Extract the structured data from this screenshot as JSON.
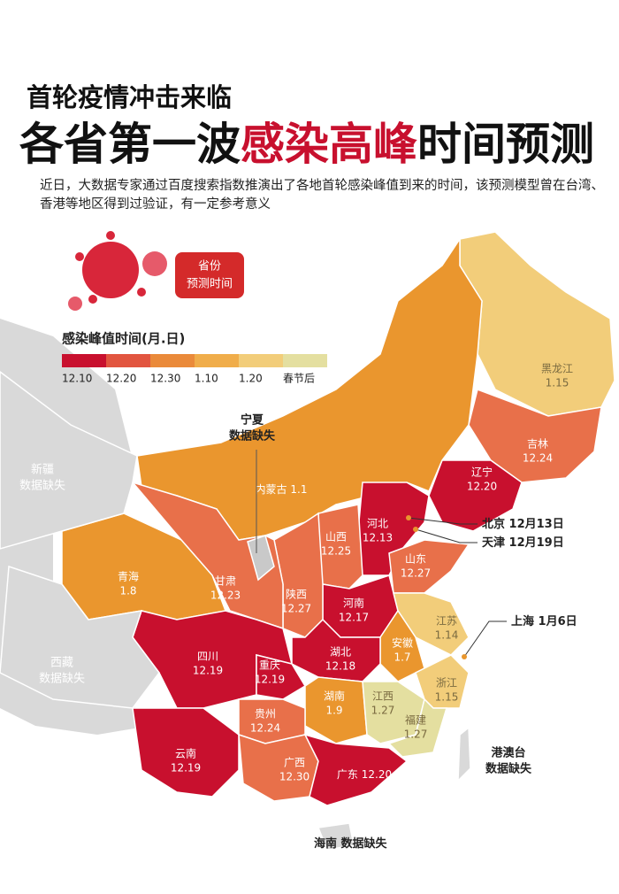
{
  "header": {
    "kicker": "首轮疫情冲击来临",
    "title_prefix": "各省第一波",
    "title_highlight": "感染高峰",
    "title_suffix": "时间预测",
    "description": "近日，大数据专家通过百度搜索指数推演出了各地首轮感染峰值到来的时间，该预测模型曾在台湾、香港等地区得到过验证，有一定参考意义"
  },
  "badge": [
    "省份",
    "预测时间"
  ],
  "legend": {
    "title": "感染峰值时间(月.日)",
    "items": [
      {
        "label": "12.10",
        "color": "#c8102e"
      },
      {
        "label": "12.20",
        "color": "#e2553f"
      },
      {
        "label": "12.30",
        "color": "#ea8a3a"
      },
      {
        "label": "1.10",
        "color": "#f0ad4a"
      },
      {
        "label": "1.20",
        "color": "#f2cd7a"
      },
      {
        "label": "春节后",
        "color": "#e4dfa0"
      }
    ]
  },
  "regions": [
    {
      "name": "黑龙江",
      "date": "1.15",
      "color": "#f2cd7a"
    },
    {
      "name": "吉林",
      "date": "12.24",
      "color": "#e8704a"
    },
    {
      "name": "辽宁",
      "date": "12.20",
      "color": "#c8102e"
    },
    {
      "name": "内蒙古",
      "date": "1.1",
      "color": "#ea962e"
    },
    {
      "name": "河北",
      "date": "12.13",
      "color": "#c8102e"
    },
    {
      "name": "山西",
      "date": "12.25",
      "color": "#e8704a"
    },
    {
      "name": "山东",
      "date": "12.27",
      "color": "#e8704a"
    },
    {
      "name": "河南",
      "date": "12.17",
      "color": "#c8102e"
    },
    {
      "name": "陕西",
      "date": "12.27",
      "color": "#e8704a"
    },
    {
      "name": "甘肃",
      "date": "12.23",
      "color": "#e8704a"
    },
    {
      "name": "青海",
      "date": "1.8",
      "color": "#ea962e"
    },
    {
      "name": "江苏",
      "date": "1.14",
      "color": "#f2cd7a"
    },
    {
      "name": "安徽",
      "date": "1.7",
      "color": "#ea962e"
    },
    {
      "name": "浙江",
      "date": "1.15",
      "color": "#f2cd7a"
    },
    {
      "name": "湖北",
      "date": "12.18",
      "color": "#c8102e"
    },
    {
      "name": "四川",
      "date": "12.19",
      "color": "#c8102e"
    },
    {
      "name": "重庆",
      "date": "12.19",
      "color": "#c8102e"
    },
    {
      "name": "湖南",
      "date": "1.9",
      "color": "#ea962e"
    },
    {
      "name": "江西",
      "date": "1.27",
      "color": "#e4dfa0"
    },
    {
      "name": "福建",
      "date": "1.27",
      "color": "#e4dfa0"
    },
    {
      "name": "贵州",
      "date": "12.24",
      "color": "#e8704a"
    },
    {
      "name": "云南",
      "date": "12.19",
      "color": "#c8102e"
    },
    {
      "name": "广西",
      "date": "12.30",
      "color": "#e8704a"
    },
    {
      "name": "广东",
      "date": "12.20",
      "color": "#c8102e"
    }
  ],
  "nodata": [
    {
      "name": "宁夏",
      "note": "数据缺失"
    },
    {
      "name": "新疆",
      "note": "数据缺失"
    },
    {
      "name": "西藏",
      "note": "数据缺失"
    },
    {
      "name": "港澳台",
      "note": "数据缺失"
    },
    {
      "name": "海南",
      "note": "数据缺失"
    }
  ],
  "callouts": [
    {
      "name": "北京",
      "date": "12月13日"
    },
    {
      "name": "天津",
      "date": "12月19日"
    },
    {
      "name": "上海",
      "date": "1月6日"
    }
  ]
}
